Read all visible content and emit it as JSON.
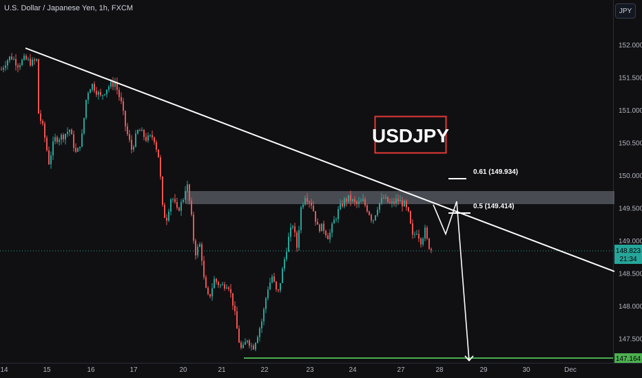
{
  "header": {
    "symbol_title": "U.S. Dollar / Japanese Yen, 1h, FXCM"
  },
  "toolbar": {
    "currency_label": "JPY"
  },
  "annotations": {
    "title": "USDJPY",
    "fib_61": "0.61 (149.934)",
    "fib_50": "0.5 (149.414)"
  },
  "price_tags": {
    "current": "148.823",
    "countdown": "21:34",
    "target": "147.164"
  },
  "colors": {
    "up": "#26a69a",
    "down": "#ef5350",
    "background": "#101013",
    "target_line": "#4caf50",
    "title_border": "#e53935",
    "resistance_zone": "#787b86"
  },
  "chart_data": {
    "type": "candlestick",
    "title": "USDJPY",
    "instrument": "U.S. Dollar / Japanese Yen",
    "timeframe": "1h",
    "ylim": [
      146.9,
      152.55
    ],
    "y_ticks": [
      "152.000",
      "151.500",
      "151.000",
      "150.500",
      "150.000",
      "149.500",
      "149.000",
      "148.500",
      "148.000",
      "147.500"
    ],
    "x_ticks": [
      "14",
      "15",
      "16",
      "17",
      "20",
      "21",
      "22",
      "23",
      "24",
      "27",
      "28",
      "29",
      "30",
      "Dec"
    ],
    "close_path": [
      [
        0,
        151.6
      ],
      [
        8,
        151.75
      ],
      [
        15,
        151.82
      ],
      [
        25,
        151.7
      ],
      [
        35,
        151.78
      ],
      [
        45,
        151.72
      ],
      [
        52,
        151.76
      ],
      [
        55,
        150.95
      ],
      [
        62,
        150.7
      ],
      [
        70,
        150.2
      ],
      [
        78,
        150.55
      ],
      [
        90,
        150.6
      ],
      [
        100,
        150.7
      ],
      [
        110,
        150.3
      ],
      [
        118,
        150.6
      ],
      [
        125,
        151.25
      ],
      [
        132,
        151.4
      ],
      [
        145,
        151.2
      ],
      [
        155,
        151.35
      ],
      [
        166,
        151.42
      ],
      [
        175,
        151.1
      ],
      [
        182,
        150.7
      ],
      [
        190,
        150.4
      ],
      [
        200,
        150.7
      ],
      [
        212,
        150.55
      ],
      [
        222,
        150.6
      ],
      [
        230,
        150.25
      ],
      [
        235,
        149.5
      ],
      [
        240,
        149.3
      ],
      [
        248,
        149.7
      ],
      [
        256,
        149.45
      ],
      [
        264,
        149.6
      ],
      [
        270,
        149.9
      ],
      [
        276,
        149.45
      ],
      [
        282,
        148.8
      ],
      [
        290,
        148.95
      ],
      [
        296,
        148.3
      ],
      [
        302,
        148.1
      ],
      [
        310,
        148.4
      ],
      [
        320,
        148.3
      ],
      [
        330,
        148.35
      ],
      [
        338,
        148.0
      ],
      [
        345,
        147.5
      ],
      [
        350,
        147.3
      ],
      [
        358,
        147.5
      ],
      [
        366,
        147.35
      ],
      [
        374,
        147.6
      ],
      [
        380,
        147.8
      ],
      [
        387,
        148.25
      ],
      [
        394,
        148.45
      ],
      [
        402,
        148.15
      ],
      [
        410,
        148.6
      ],
      [
        417,
        149.0
      ],
      [
        424,
        149.25
      ],
      [
        430,
        148.9
      ],
      [
        436,
        149.5
      ],
      [
        442,
        149.7
      ],
      [
        452,
        149.55
      ],
      [
        460,
        149.2
      ],
      [
        468,
        149.2
      ],
      [
        476,
        149.05
      ],
      [
        484,
        149.3
      ],
      [
        490,
        149.45
      ],
      [
        498,
        149.6
      ],
      [
        506,
        149.65
      ],
      [
        516,
        149.55
      ],
      [
        526,
        149.6
      ],
      [
        534,
        149.45
      ],
      [
        540,
        149.3
      ],
      [
        548,
        149.55
      ],
      [
        556,
        149.65
      ],
      [
        566,
        149.55
      ],
      [
        576,
        149.62
      ],
      [
        586,
        149.55
      ],
      [
        592,
        149.4
      ],
      [
        598,
        149.05
      ],
      [
        604,
        149.15
      ],
      [
        610,
        149.0
      ],
      [
        616,
        149.15
      ],
      [
        620,
        148.95
      ],
      [
        626,
        148.85
      ]
    ],
    "projection": [
      [
        629,
        149.55
      ],
      [
        647,
        149.1
      ],
      [
        663,
        149.6
      ],
      [
        681,
        147.16
      ]
    ],
    "trendline": [
      [
        37,
        151.96
      ],
      [
        892,
        148.48
      ]
    ],
    "resistance_zone": [
      149.58,
      149.78
    ],
    "fib_levels": [
      {
        "ratio": 0.61,
        "price": 149.934
      },
      {
        "ratio": 0.5,
        "price": 149.414
      }
    ],
    "current_price": 148.823,
    "target_price": 147.164
  }
}
